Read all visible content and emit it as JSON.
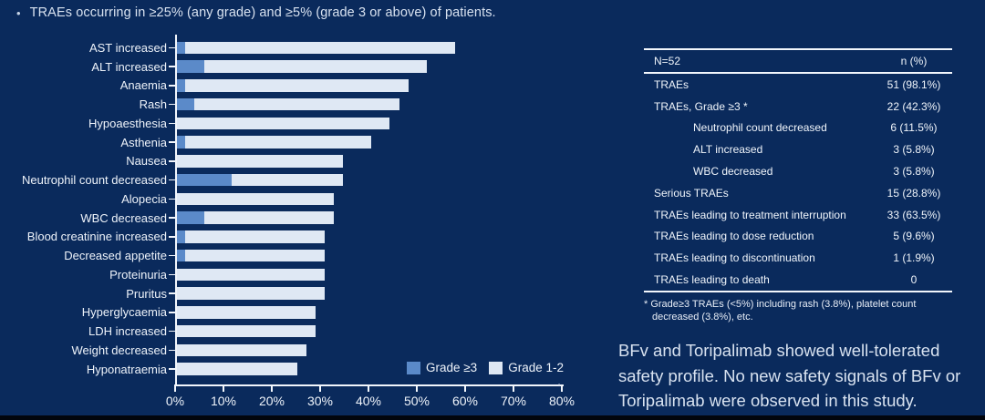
{
  "slide": {
    "title_bullet": "•",
    "title": "TRAEs occurring in ≥25% (any grade) and ≥5% (grade 3 or above) of patients.",
    "summary": "BFv and Toripalimab showed well-tolerated safety profile. No new safety signals of BFv or Toripalimab were observed in this study.",
    "stray_period": "."
  },
  "colors": {
    "background": "#0a2a5c",
    "grade3_blue": "#5b8ac9",
    "grade12_light": "#dfe8f4",
    "axis": "#f2f6fc",
    "text": "#eef3fa"
  },
  "chart_data": {
    "type": "bar",
    "orientation": "horizontal",
    "stacked": true,
    "categories": [
      "AST increased",
      "ALT increased",
      "Anaemia",
      "Rash",
      "Hypoaesthesia",
      "Asthenia",
      "Nausea",
      "Neutrophil count decreased",
      "Alopecia",
      "WBC decreased",
      "Blood creatinine increased",
      "Decreased appetite",
      "Proteinuria",
      "Pruritus",
      "Hyperglycaemia",
      "LDH increased",
      "Weight decreased",
      "Hyponatraemia"
    ],
    "series": [
      {
        "name": "Grade ≥3",
        "color": "#5b8ac9",
        "values": [
          1.9,
          5.8,
          1.9,
          3.8,
          0,
          1.9,
          0,
          11.5,
          0,
          5.8,
          1.9,
          1.9,
          0,
          0,
          0,
          0,
          0,
          0
        ]
      },
      {
        "name": "Grade 1-2",
        "color": "#dfe8f4",
        "values": [
          55.8,
          46.1,
          46.2,
          42.4,
          44.2,
          38.5,
          34.6,
          23.1,
          32.7,
          26.9,
          28.9,
          28.9,
          30.8,
          30.8,
          28.8,
          28.8,
          26.9,
          25.0
        ]
      }
    ],
    "totals_any_grade": [
      57.7,
      51.9,
      48.1,
      46.2,
      44.2,
      40.4,
      34.6,
      34.6,
      32.7,
      32.7,
      30.8,
      30.8,
      30.8,
      30.8,
      28.8,
      28.8,
      26.9,
      25.0
    ],
    "xlim": [
      0,
      80
    ],
    "x_ticks": [
      "0%",
      "10%",
      "20%",
      "30%",
      "40%",
      "50%",
      "60%",
      "70%",
      "80%"
    ],
    "legend_position": "bottom-right-inside",
    "grid": false
  },
  "table": {
    "header": [
      "N=52",
      "n (%)"
    ],
    "rows": [
      {
        "label": "TRAEs",
        "value": "51 (98.1%)",
        "indent": false
      },
      {
        "label": "TRAEs, Grade ≥3 *",
        "value": "22 (42.3%)",
        "indent": false
      },
      {
        "label": "Neutrophil count decreased",
        "value": "6 (11.5%)",
        "indent": true
      },
      {
        "label": "ALT increased",
        "value": "3 (5.8%)",
        "indent": true
      },
      {
        "label": "WBC decreased",
        "value": "3 (5.8%)",
        "indent": true
      },
      {
        "label": "Serious TRAEs",
        "value": "15 (28.8%)",
        "indent": false
      },
      {
        "label": "TRAEs leading to treatment interruption",
        "value": "33 (63.5%)",
        "indent": false
      },
      {
        "label": "TRAEs leading to dose reduction",
        "value": "5 (9.6%)",
        "indent": false
      },
      {
        "label": "TRAEs leading to discontinuation",
        "value": "1 (1.9%)",
        "indent": false
      },
      {
        "label": "TRAEs leading to death",
        "value": "0",
        "indent": false
      }
    ],
    "footnote": "* Grade≥3 TRAEs (<5%) including rash (3.8%), platelet count decreased (3.8%), etc."
  }
}
